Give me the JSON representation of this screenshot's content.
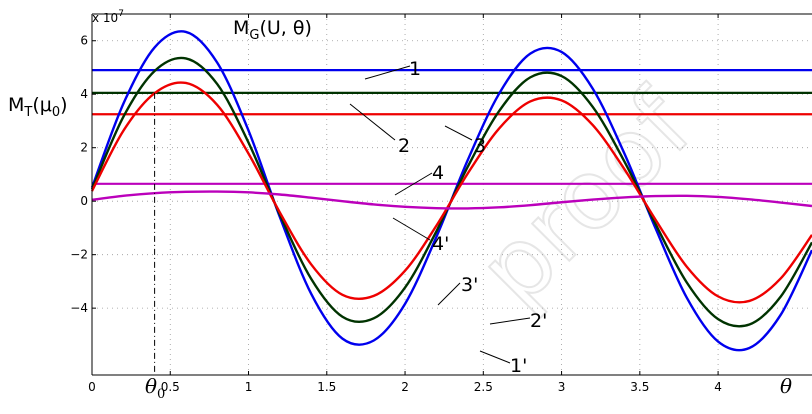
{
  "chart_data": {
    "type": "line",
    "title": "M_G(U, θ)",
    "xlabel": "θ",
    "ylabel": "",
    "y_multiplier": "x 10^7",
    "xlim": [
      0,
      4.6
    ],
    "ylim": [
      -6.5,
      7.0
    ],
    "grid": true,
    "x_ticks": [
      0,
      0.5,
      1,
      1.5,
      2,
      2.5,
      3,
      3.5,
      4
    ],
    "x_tick_labels": [
      "0",
      "0.5",
      "1",
      "1.5",
      "2",
      "2.5",
      "3",
      "3.5",
      "4"
    ],
    "y_ticks": [
      -4,
      -2,
      0,
      2,
      4,
      6
    ],
    "y_tick_labels": [
      "−4",
      "−2",
      "0",
      "2",
      "4",
      "6"
    ],
    "vertical_marker": {
      "x": 0.4,
      "label": "θ0"
    },
    "horizontal_lines": [
      {
        "name": "1",
        "y": 4.9,
        "color": "#0000ee"
      },
      {
        "name": "2",
        "y": 4.05,
        "color": "#003300"
      },
      {
        "name": "3",
        "y": 3.25,
        "color": "#ee0000"
      },
      {
        "name": "4",
        "y": 0.65,
        "color": "#bb00bb"
      }
    ],
    "series": [
      {
        "name": "1'",
        "color": "#0000ee",
        "x": [
          0,
          0.2,
          0.4,
          0.6,
          0.8,
          1.0,
          1.2,
          1.4,
          1.6,
          1.8,
          2.0,
          2.2,
          2.4,
          2.6,
          2.8,
          3.0,
          3.2,
          3.4,
          3.6,
          3.8,
          4.0,
          4.2,
          4.4,
          4.6
        ],
        "y": [
          0.51,
          3.64,
          5.75,
          6.33,
          5.18,
          2.64,
          -0.59,
          -3.46,
          -5.14,
          -5.21,
          -3.84,
          -1.34,
          1.53,
          4.01,
          5.52,
          5.58,
          4.2,
          1.8,
          -1.01,
          -3.61,
          -5.25,
          -5.49,
          -4.25,
          -1.83
        ]
      },
      {
        "name": "2'",
        "color": "#003300",
        "x": [
          0,
          0.2,
          0.4,
          0.6,
          0.8,
          1.0,
          1.2,
          1.4,
          1.6,
          1.8,
          2.0,
          2.2,
          2.4,
          2.6,
          2.8,
          3.0,
          3.2,
          3.4,
          3.6,
          3.8,
          4.0,
          4.2,
          4.4,
          4.6
        ],
        "y": [
          0.45,
          3.15,
          4.87,
          5.34,
          4.38,
          2.19,
          -0.5,
          -2.9,
          -4.32,
          -4.38,
          -3.23,
          -1.13,
          1.28,
          3.36,
          4.63,
          4.68,
          3.52,
          1.5,
          -0.85,
          -3.04,
          -4.41,
          -4.61,
          -3.57,
          -1.54
        ]
      },
      {
        "name": "3'",
        "color": "#ee0000",
        "x": [
          0,
          0.2,
          0.4,
          0.6,
          0.8,
          1.0,
          1.2,
          1.4,
          1.6,
          1.8,
          2.0,
          2.2,
          2.4,
          2.6,
          2.8,
          3.0,
          3.2,
          3.4,
          3.6,
          3.8,
          4.0,
          4.2,
          4.4,
          4.6
        ],
        "y": [
          0.38,
          2.63,
          4.04,
          4.42,
          3.6,
          1.78,
          -0.42,
          -2.36,
          -3.5,
          -3.54,
          -2.6,
          -0.92,
          1.03,
          2.71,
          3.73,
          3.77,
          2.84,
          1.21,
          -0.69,
          -2.45,
          -3.56,
          -3.73,
          -2.89,
          -1.26
        ]
      },
      {
        "name": "4'",
        "color": "#bb00bb",
        "x": [
          0,
          0.2,
          0.4,
          0.6,
          0.8,
          1.0,
          1.2,
          1.4,
          1.6,
          1.8,
          2.0,
          2.2,
          2.4,
          2.6,
          2.8,
          3.0,
          3.2,
          3.4,
          3.6,
          3.8,
          4.0,
          4.2,
          4.4,
          4.6
        ],
        "y": [
          0.05,
          0.2,
          0.3,
          0.35,
          0.36,
          0.33,
          0.25,
          0.13,
          0.0,
          -0.12,
          -0.21,
          -0.26,
          -0.27,
          -0.23,
          -0.15,
          -0.04,
          0.06,
          0.14,
          0.19,
          0.2,
          0.16,
          0.07,
          -0.05,
          -0.18
        ]
      }
    ],
    "annotations": {
      "mt_label": "M_T(μ0)",
      "curve_labels": [
        "1",
        "2",
        "3",
        "4",
        "4'",
        "3'",
        "2'",
        "1'"
      ]
    },
    "watermark": "proof"
  }
}
